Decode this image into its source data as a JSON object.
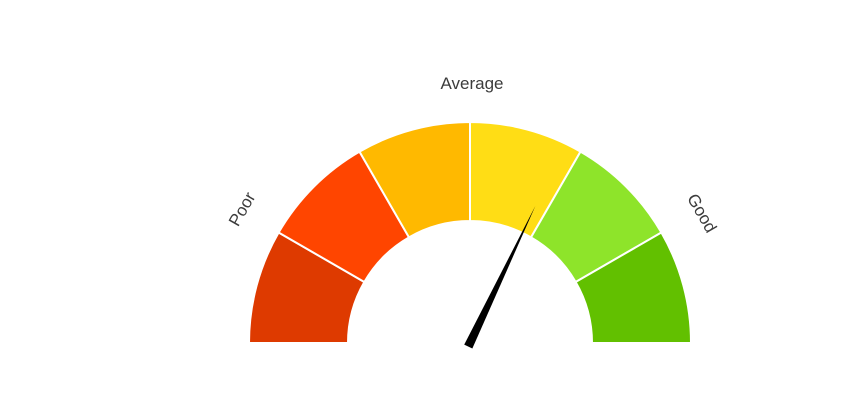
{
  "chart_data": {
    "type": "gauge",
    "title": "",
    "min": 0,
    "max": 6,
    "value": 3.85,
    "labels": {
      "left": "Poor",
      "center": "Average",
      "right": "Good"
    },
    "bands": [
      {
        "from": 0,
        "to": 1,
        "color": "#de3a00"
      },
      {
        "from": 1,
        "to": 2,
        "color": "#ff4500"
      },
      {
        "from": 2,
        "to": 3,
        "color": "#ffb900"
      },
      {
        "from": 3,
        "to": 4,
        "color": "#ffdd15"
      },
      {
        "from": 4,
        "to": 5,
        "color": "#8ee42a"
      },
      {
        "from": 5,
        "to": 6,
        "color": "#62c000"
      }
    ],
    "needle_color": "#000000"
  }
}
